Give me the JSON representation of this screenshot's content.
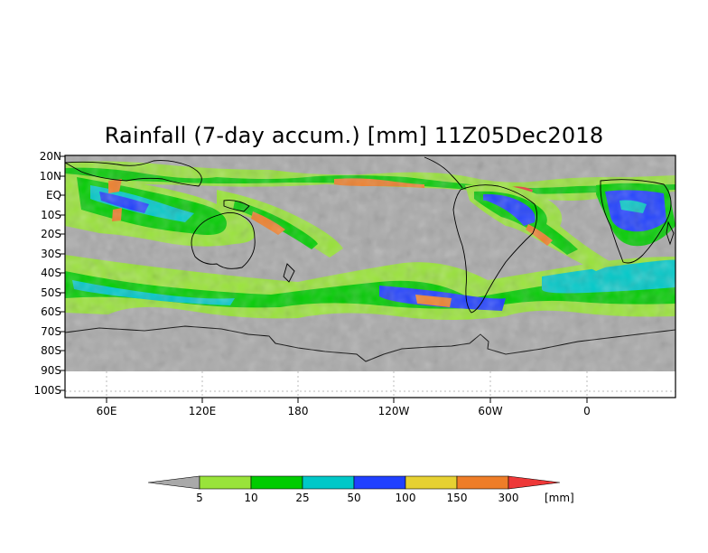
{
  "title": "Rainfall (7-day accum.) [mm] 11Z05Dec2018",
  "lat_labels": [
    "20N",
    "10N",
    "EQ",
    "10S",
    "20S",
    "30S",
    "40S",
    "50S",
    "60S",
    "70S",
    "80S",
    "90S",
    "100S"
  ],
  "lon_labels": [
    "60E",
    "120E",
    "180",
    "120W",
    "60W",
    "0"
  ],
  "legend": {
    "thresholds": [
      "5",
      "10",
      "25",
      "50",
      "100",
      "150",
      "300"
    ],
    "unit": "[mm]",
    "colors": [
      "#a9a9a9",
      "#99e33a",
      "#00cc00",
      "#00c8c8",
      "#2040ff",
      "#e6d132",
      "#ee7d28",
      "#ee3838"
    ]
  },
  "colors": {
    "ocean_dry": "#a9a9a9",
    "no_data": "#ffffff",
    "coast": "#000000"
  }
}
